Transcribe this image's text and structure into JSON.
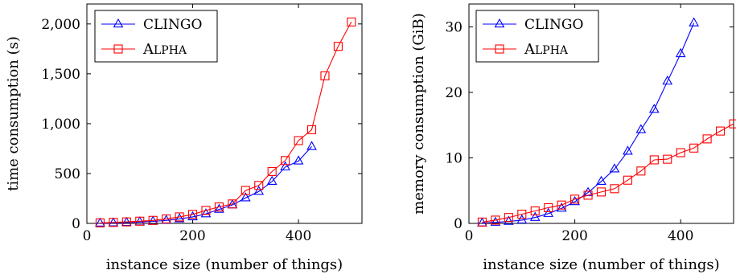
{
  "chart_data": [
    {
      "type": "line",
      "xlabel": "instance size (number of things)",
      "ylabel": "time consumption (s)",
      "xlim": [
        0,
        520
      ],
      "ylim": [
        0,
        2200
      ],
      "xticks": [
        0,
        200,
        400
      ],
      "yticks": [
        0,
        500,
        1000,
        1500,
        2000
      ],
      "xtick_labels": [
        "0",
        "200",
        "400"
      ],
      "ytick_labels": [
        "0",
        "500",
        "1,000",
        "1,500",
        "2,000"
      ],
      "grid": false,
      "legend_position": "top-left",
      "series": [
        {
          "name": "clingo",
          "color": "#0000ff",
          "marker": "triangle",
          "x": [
            25,
            50,
            75,
            100,
            125,
            150,
            175,
            200,
            225,
            250,
            275,
            300,
            325,
            350,
            375,
            400,
            425
          ],
          "y": [
            2,
            4,
            8,
            14,
            20,
            30,
            45,
            65,
            95,
            140,
            185,
            255,
            320,
            420,
            565,
            625,
            770
          ]
        },
        {
          "name": "Alpha",
          "color": "#ff0000",
          "marker": "square",
          "x": [
            25,
            50,
            75,
            100,
            125,
            150,
            175,
            200,
            225,
            250,
            275,
            300,
            325,
            350,
            375,
            400,
            425,
            450,
            475,
            500
          ],
          "y": [
            5,
            10,
            15,
            22,
            30,
            45,
            65,
            90,
            130,
            165,
            195,
            330,
            380,
            520,
            630,
            830,
            940,
            1480,
            1775,
            2020
          ]
        }
      ]
    },
    {
      "type": "line",
      "xlabel": "instance size (number of things)",
      "ylabel": "memory consumption (GiB)",
      "xlim": [
        0,
        500
      ],
      "ylim": [
        0,
        33.5
      ],
      "xticks": [
        0,
        200,
        400
      ],
      "yticks": [
        0,
        10,
        20,
        30
      ],
      "xtick_labels": [
        "0",
        "200",
        "400"
      ],
      "ytick_labels": [
        "0",
        "10",
        "20",
        "30"
      ],
      "grid": false,
      "legend_position": "top-left",
      "series": [
        {
          "name": "clingo",
          "color": "#0000ff",
          "marker": "triangle",
          "x": [
            25,
            50,
            75,
            100,
            125,
            150,
            175,
            200,
            225,
            250,
            275,
            300,
            325,
            350,
            375,
            400,
            425
          ],
          "y": [
            0.05,
            0.15,
            0.3,
            0.5,
            0.9,
            1.5,
            2.3,
            3.3,
            4.7,
            6.4,
            8.3,
            11.0,
            14.3,
            17.4,
            21.7,
            25.9,
            30.6
          ]
        },
        {
          "name": "Alpha",
          "color": "#ff0000",
          "marker": "square",
          "x": [
            25,
            50,
            75,
            100,
            125,
            150,
            175,
            200,
            225,
            250,
            275,
            300,
            325,
            350,
            375,
            400,
            425,
            450,
            475,
            500
          ],
          "y": [
            0.2,
            0.5,
            0.9,
            1.4,
            1.9,
            2.4,
            2.8,
            3.7,
            4.3,
            4.8,
            5.3,
            6.6,
            8.0,
            9.7,
            9.8,
            10.8,
            11.5,
            12.9,
            14.1,
            15.2
          ]
        }
      ]
    }
  ]
}
